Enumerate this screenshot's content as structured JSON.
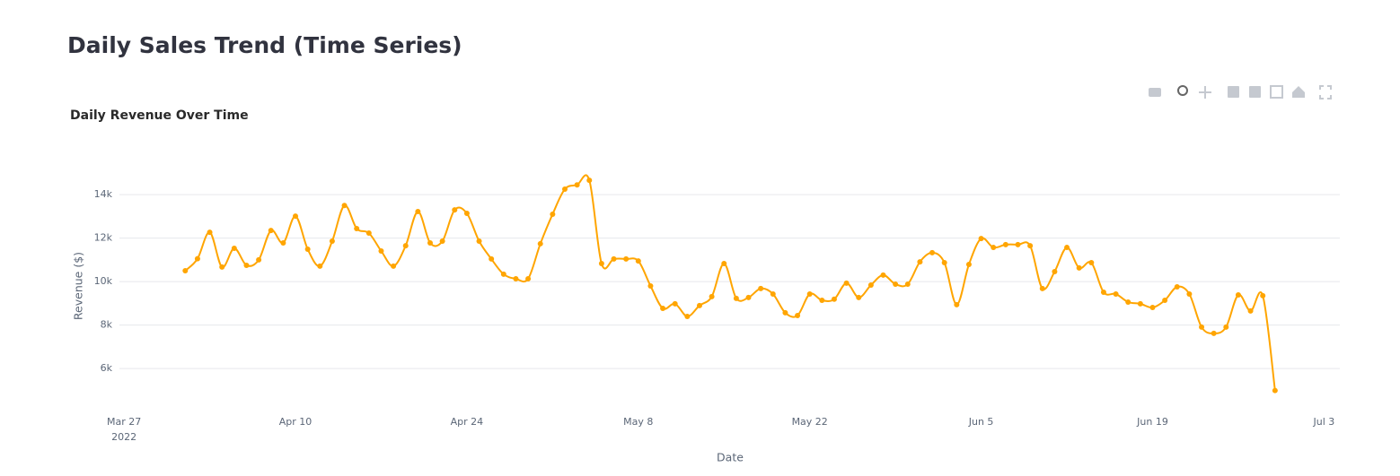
{
  "header": {
    "title": "Daily Sales Trend (Time Series)"
  },
  "chart_data": {
    "type": "line",
    "title": "Daily Revenue Over Time",
    "x_label": "Date",
    "y_label": "Revenue ($)",
    "x": [
      "2022-04-01",
      "2022-04-02",
      "2022-04-03",
      "2022-04-04",
      "2022-04-05",
      "2022-04-06",
      "2022-04-07",
      "2022-04-08",
      "2022-04-09",
      "2022-04-10",
      "2022-04-11",
      "2022-04-12",
      "2022-04-13",
      "2022-04-14",
      "2022-04-15",
      "2022-04-16",
      "2022-04-17",
      "2022-04-18",
      "2022-04-19",
      "2022-04-20",
      "2022-04-21",
      "2022-04-22",
      "2022-04-23",
      "2022-04-24",
      "2022-04-25",
      "2022-04-26",
      "2022-04-27",
      "2022-04-28",
      "2022-04-29",
      "2022-04-30",
      "2022-05-01",
      "2022-05-02",
      "2022-05-03",
      "2022-05-04",
      "2022-05-05",
      "2022-05-06",
      "2022-05-07",
      "2022-05-08",
      "2022-05-09",
      "2022-05-10",
      "2022-05-11",
      "2022-05-12",
      "2022-05-13",
      "2022-05-14",
      "2022-05-15",
      "2022-05-16",
      "2022-05-17",
      "2022-05-18",
      "2022-05-19",
      "2022-05-20",
      "2022-05-21",
      "2022-05-22",
      "2022-05-23",
      "2022-05-24",
      "2022-05-25",
      "2022-05-26",
      "2022-05-27",
      "2022-05-28",
      "2022-05-29",
      "2022-05-30",
      "2022-05-31",
      "2022-06-01",
      "2022-06-02",
      "2022-06-03",
      "2022-06-04",
      "2022-06-05",
      "2022-06-06",
      "2022-06-07",
      "2022-06-08",
      "2022-06-09",
      "2022-06-10",
      "2022-06-11",
      "2022-06-12",
      "2022-06-13",
      "2022-06-14",
      "2022-06-15",
      "2022-06-16",
      "2022-06-17",
      "2022-06-18",
      "2022-06-19",
      "2022-06-20",
      "2022-06-21",
      "2022-06-22",
      "2022-06-23",
      "2022-06-24",
      "2022-06-25",
      "2022-06-26",
      "2022-06-27",
      "2022-06-28",
      "2022-06-29"
    ],
    "series": [
      {
        "name": "Revenue",
        "color": "#FFA500",
        "values": [
          10500,
          11050,
          12270,
          10670,
          11530,
          10750,
          11000,
          12350,
          11780,
          13010,
          11490,
          10710,
          11860,
          13500,
          12440,
          12230,
          11410,
          10710,
          11650,
          13220,
          11780,
          11860,
          13300,
          13140,
          11860,
          11040,
          10340,
          10130,
          10130,
          11740,
          13100,
          14250,
          14450,
          14660,
          10830,
          11040,
          11040,
          10950,
          9800,
          8770,
          8980,
          8400,
          8900,
          9310,
          10830,
          9230,
          9270,
          9680,
          9430,
          8570,
          8440,
          9430,
          9140,
          9190,
          9930,
          9270,
          9840,
          10300,
          9880,
          9880,
          10910,
          11330,
          10870,
          8940,
          10790,
          11980,
          11570,
          11700,
          11700,
          11650,
          9680,
          10460,
          11570,
          10630,
          10870,
          9510,
          9430,
          9060,
          8980,
          8810,
          9140,
          9760,
          9430,
          7910,
          7620,
          7910,
          9390,
          8650,
          9350,
          4990
        ]
      }
    ],
    "xlim": [
      "2022-03-26T15:00:00Z",
      "2022-07-04T07:00:00Z"
    ],
    "xticks": [
      {
        "value": "2022-03-27",
        "label": "Mar 27\n2022"
      },
      {
        "value": "2022-04-10",
        "label": "Apr 10"
      },
      {
        "value": "2022-04-24",
        "label": "Apr 24"
      },
      {
        "value": "2022-05-08",
        "label": "May 8"
      },
      {
        "value": "2022-05-22",
        "label": "May 22"
      },
      {
        "value": "2022-06-05",
        "label": "Jun 5"
      },
      {
        "value": "2022-06-19",
        "label": "Jun 19"
      },
      {
        "value": "2022-07-03",
        "label": "Jul 3"
      }
    ],
    "ylim": [
      4400,
      15200
    ],
    "yticks": [
      {
        "value": 6000,
        "label": "6k"
      },
      {
        "value": 8000,
        "label": "8k"
      },
      {
        "value": 10000,
        "label": "10k"
      },
      {
        "value": 12000,
        "label": "12k"
      },
      {
        "value": 14000,
        "label": "14k"
      }
    ],
    "grid": true,
    "smooth": true,
    "markers": true
  }
}
